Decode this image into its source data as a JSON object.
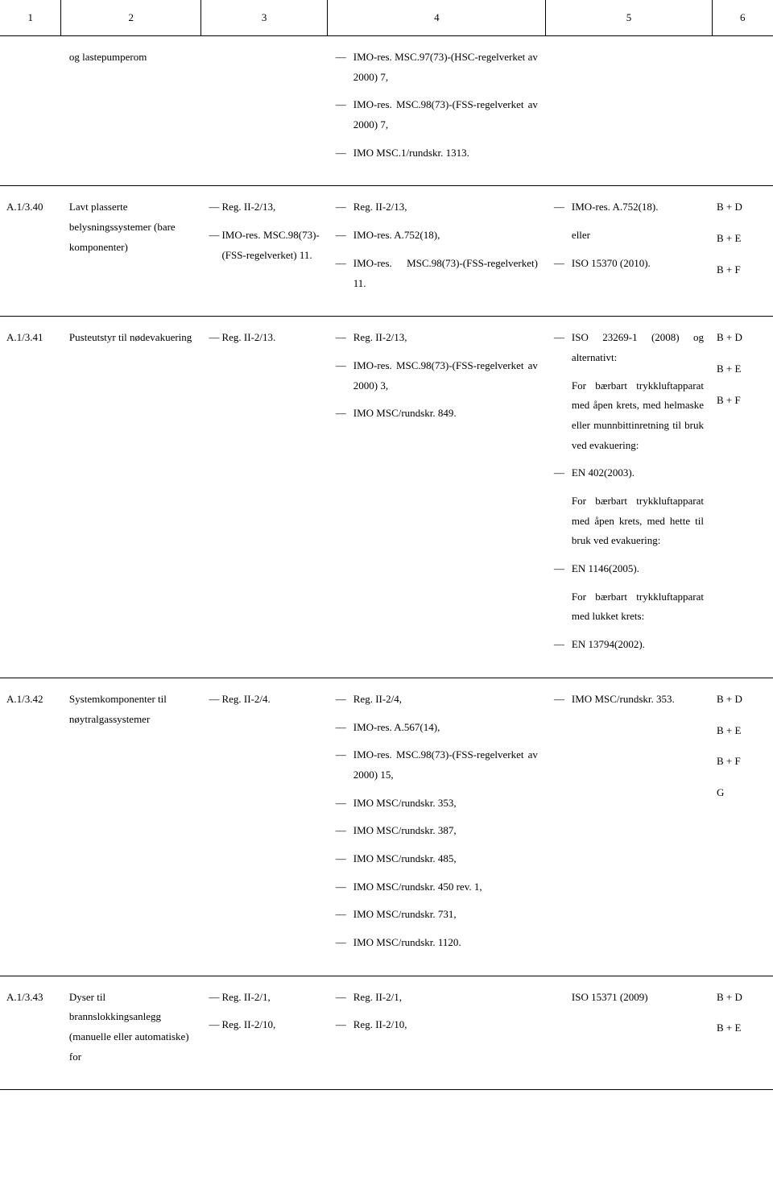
{
  "header": {
    "c1": "1",
    "c2": "2",
    "c3": "3",
    "c4": "4",
    "c5": "5",
    "c6": "6"
  },
  "rows": [
    {
      "id": "",
      "name": "og lastepumperom",
      "col3": [],
      "col4": [
        "IMO-res. MSC.97(73)-(HSC-regelverket av 2000) 7,",
        "IMO-res. MSC.98(73)-(FSS-regelverket av 2000) 7,",
        "IMO MSC.1/rundskr. 1313."
      ],
      "col5": [],
      "col6": []
    },
    {
      "id": "A.1/3.40",
      "name": "Lavt plasserte belysningssystemer (bare komponenter)",
      "col3": [
        "Reg. II-2/13,",
        "IMO-res. MSC.98(73)-(FSS-regelverket) 11."
      ],
      "col4": [
        "Reg. II-2/13,",
        "IMO-res. A.752(18),",
        "IMO-res. MSC.98(73)-(FSS-regelverket) 11."
      ],
      "col5_items": [
        {
          "dash": "—",
          "text": "IMO-res. A.752(18)."
        },
        {
          "dash": "",
          "text": "eller"
        },
        {
          "dash": "—",
          "text": "ISO 15370 (2010)."
        }
      ],
      "col6": [
        "B + D",
        "B + E",
        "B + F"
      ]
    },
    {
      "id": "A.1/3.41",
      "name": "Pusteutstyr til nødevakuering",
      "col3": [
        "Reg. II-2/13."
      ],
      "col4": [
        "Reg. II-2/13,",
        "IMO-res. MSC.98(73)-(FSS-regelverket av 2000) 3,",
        "IMO MSC/rundskr. 849."
      ],
      "col5_items": [
        {
          "dash": "—",
          "text": "ISO 23269-1 (2008) og alternativt:",
          "justify": true
        },
        {
          "dash": "",
          "text": "For bærbart trykkluftapparat med åpen krets, med helmaske eller munnbittinretning til bruk ved evakuering:",
          "justify": true
        },
        {
          "dash": "—",
          "text": "EN 402(2003)."
        },
        {
          "dash": "",
          "text": "For bærbart trykkluftapparat med åpen krets, med hette til bruk ved evakuering:",
          "justify": true
        },
        {
          "dash": "—",
          "text": "EN 1146(2005)."
        },
        {
          "dash": "",
          "text": "For bærbart trykkluftapparat med lukket krets:",
          "justify": true
        },
        {
          "dash": "—",
          "text": "EN 13794(2002)."
        }
      ],
      "col6": [
        "B + D",
        "B + E",
        "B + F"
      ]
    },
    {
      "id": "A.1/3.42",
      "name": "Systemkomponenter til nøytralgassystemer",
      "col3": [
        "Reg. II-2/4."
      ],
      "col4": [
        "Reg. II-2/4,",
        "IMO-res. A.567(14),",
        "IMO-res. MSC.98(73)-(FSS-regelverket av 2000) 15,",
        "IMO MSC/rundskr. 353,",
        "IMO MSC/rundskr. 387,",
        "IMO MSC/rundskr. 485,",
        "IMO MSC/rundskr. 450 rev. 1,",
        "IMO MSC/rundskr. 731,",
        "IMO MSC/rundskr. 1120."
      ],
      "col5_items": [
        {
          "dash": "—",
          "text": "IMO MSC/rundskr. 353."
        }
      ],
      "col6": [
        "B + D",
        "B + E",
        "B + F",
        "G"
      ]
    },
    {
      "id": "A.1/3.43",
      "name": "Dyser til brannslokkingsanlegg (manuelle eller automatiske) for",
      "col3": [
        "Reg. II-2/1,",
        "Reg. II-2/10,"
      ],
      "col4": [
        "Reg. II-2/1,",
        "Reg. II-2/10,"
      ],
      "col5_items": [
        {
          "dash": "",
          "text": "ISO 15371 (2009)"
        }
      ],
      "col6": [
        "B + D",
        "B + E"
      ]
    }
  ]
}
